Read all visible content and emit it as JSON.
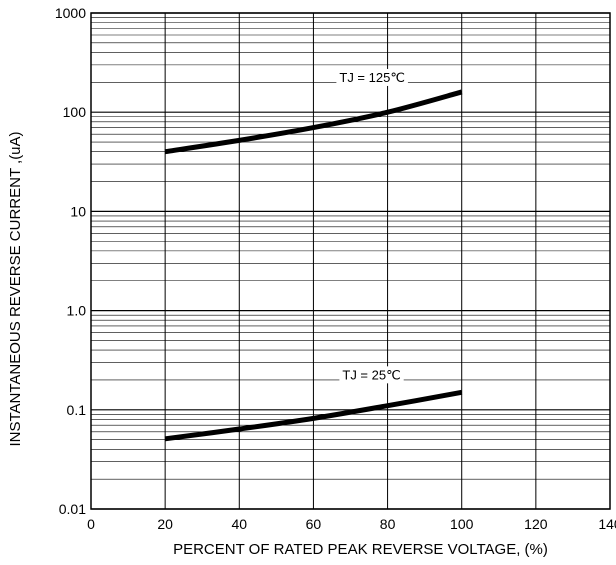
{
  "chart_data": {
    "type": "line",
    "title": "",
    "xlabel": "PERCENT OF RATED PEAK REVERSE VOLTAGE, (%)",
    "ylabel": "INSTANTANEOUS REVERSE CURRENT ,(uA)",
    "xlim": [
      0,
      140
    ],
    "ylim": [
      0.01,
      1000
    ],
    "y_scale": "log",
    "grid": true,
    "x_ticks": [
      0,
      20,
      40,
      60,
      80,
      100,
      120,
      140
    ],
    "x_tick_labels": [
      "0",
      "20",
      "40",
      "60",
      "80",
      "100",
      "120",
      "140"
    ],
    "y_ticks": [
      0.01,
      0.1,
      1,
      10,
      100,
      1000
    ],
    "y_tick_labels": [
      "0.01",
      "0.1",
      "1.0",
      "10",
      "100",
      "1000"
    ],
    "series": [
      {
        "name": "TJ = 125℃",
        "x": [
          20,
          40,
          60,
          80,
          100
        ],
        "y": [
          40,
          52,
          70,
          100,
          160
        ],
        "color": "#000000"
      },
      {
        "name": "TJ = 25℃",
        "x": [
          20,
          40,
          60,
          80,
          100
        ],
        "y": [
          0.051,
          0.064,
          0.082,
          0.11,
          0.15
        ],
        "color": "#000000"
      }
    ]
  }
}
